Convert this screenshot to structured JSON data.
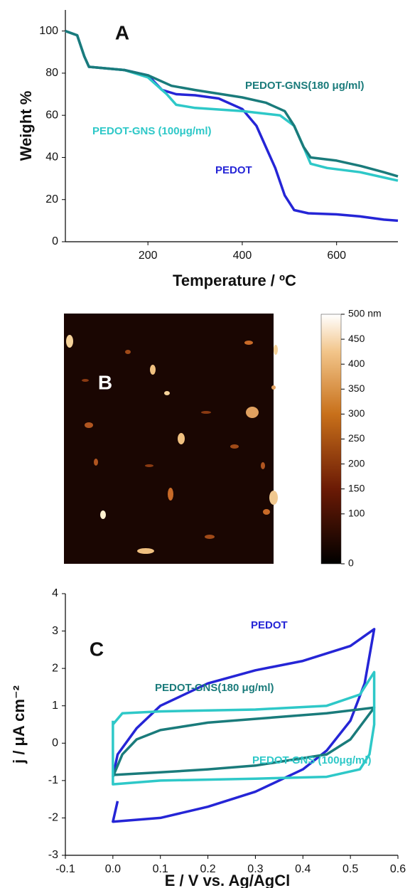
{
  "chart_data": [
    {
      "type": "line",
      "title": "A",
      "xlabel": "Temperature / ºC",
      "ylabel": "Weight %",
      "xlim": [
        25,
        730
      ],
      "xticks": [
        200,
        400,
        600
      ],
      "ylim": [
        0,
        110
      ],
      "yticks": [
        0,
        20,
        40,
        60,
        80,
        100
      ],
      "series": [
        {
          "name": "PEDOT",
          "color": "#2525d6",
          "x": [
            25,
            50,
            65,
            75,
            100,
            150,
            200,
            230,
            260,
            300,
            350,
            400,
            430,
            450,
            470,
            490,
            510,
            540,
            600,
            650,
            700,
            730
          ],
          "values": [
            100,
            98,
            88,
            83,
            82.5,
            81.5,
            79,
            72,
            70,
            69.5,
            68,
            63,
            55,
            45,
            35,
            22,
            15,
            13.5,
            13,
            12,
            10.5,
            10
          ]
        },
        {
          "name": "PEDOT-GNS (100μg/ml)",
          "color": "#2ec8c8",
          "x": [
            25,
            50,
            65,
            75,
            100,
            150,
            200,
            240,
            260,
            300,
            400,
            480,
            510,
            530,
            545,
            580,
            650,
            730
          ],
          "values": [
            100,
            98,
            88,
            83,
            82.5,
            81.5,
            78,
            70,
            65,
            63.5,
            62,
            60,
            55,
            45,
            37,
            35,
            33,
            29
          ]
        },
        {
          "name": "PEDOT-GNS(180 μg/ml)",
          "color": "#1a7b7b",
          "x": [
            25,
            50,
            65,
            75,
            100,
            150,
            200,
            250,
            300,
            400,
            450,
            490,
            510,
            530,
            545,
            600,
            650,
            700,
            730
          ],
          "values": [
            100,
            98,
            88,
            83,
            82.5,
            81.5,
            79,
            74,
            72,
            68.5,
            66,
            62,
            55,
            45,
            40,
            38.5,
            36,
            33,
            31
          ]
        }
      ]
    },
    {
      "type": "image",
      "title": "B",
      "clim": [
        0,
        500
      ],
      "cticks": [
        0,
        100,
        150,
        200,
        250,
        300,
        350,
        400,
        450,
        {
          "value": 500,
          "label": "500 nm"
        }
      ]
    },
    {
      "type": "line",
      "title": "C",
      "xlabel": "E / V vs. Ag/AgCl",
      "ylabel": "j / μA cm⁻²",
      "xlim": [
        -0.1,
        0.6
      ],
      "xticks": [
        -0.1,
        {
          "value": 0,
          "label": "0.0"
        },
        0.1,
        0.2,
        0.3,
        0.4,
        0.5,
        0.6
      ],
      "ylim": [
        -3,
        4
      ],
      "yticks": [
        -3,
        -2,
        -1,
        0,
        1,
        2,
        3,
        4
      ],
      "series": [
        {
          "name": "PEDOT",
          "color": "#2525d6",
          "x": [
            0.01,
            0,
            0.1,
            0.2,
            0.3,
            0.4,
            0.45,
            0.5,
            0.53,
            0.55,
            0.5,
            0.4,
            0.3,
            0.2,
            0.1,
            0.05,
            0.01,
            0
          ],
          "values": [
            -1.55,
            -2.1,
            -2.0,
            -1.7,
            -1.3,
            -0.7,
            -0.2,
            0.6,
            1.6,
            3.05,
            2.6,
            2.2,
            1.95,
            1.6,
            1.0,
            0.4,
            -0.3,
            -0.9
          ]
        },
        {
          "name": "PEDOT-GNS(180 μg/ml)",
          "color": "#1a7b7b",
          "x": [
            0,
            0.02,
            0.05,
            0.1,
            0.2,
            0.3,
            0.45,
            0.55,
            0.5,
            0.45,
            0.3,
            0.2,
            0.1,
            0
          ],
          "values": [
            -0.9,
            -0.3,
            0.1,
            0.35,
            0.55,
            0.65,
            0.8,
            0.95,
            0.1,
            -0.3,
            -0.6,
            -0.7,
            -0.78,
            -0.85
          ]
        },
        {
          "name": "PEDOT-GNS (100μg/ml)",
          "color": "#2ec8c8",
          "x": [
            0,
            0.02,
            0.1,
            0.3,
            0.45,
            0.52,
            0.55,
            0.55,
            0.54,
            0.52,
            0.45,
            0.3,
            0.1,
            0,
            0,
            0
          ],
          "values": [
            0.5,
            0.8,
            0.85,
            0.9,
            1.0,
            1.3,
            1.9,
            0.5,
            -0.3,
            -0.7,
            -0.9,
            -0.95,
            -1.0,
            -1.1,
            -0.5,
            0.6
          ]
        }
      ]
    }
  ]
}
